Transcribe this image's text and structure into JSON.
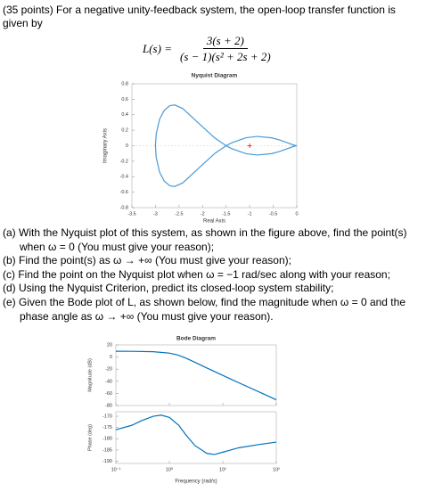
{
  "intro": "(35 points) For a negative unity-feedback system, the open-loop transfer function is given by",
  "formula": {
    "lhs": "L(s) =",
    "numerator": "3(s + 2)",
    "denominator": "(s − 1)(s² + 2s + 2)"
  },
  "nyquist": {
    "type": "line",
    "title": "Nyquist Diagram",
    "xlabel": "Real Axis",
    "ylabel": "Imaginary Axis",
    "xlim": [
      -3.5,
      0
    ],
    "xticks": [
      -3.5,
      -3,
      -2.5,
      -2,
      -1.5,
      -1,
      -0.5,
      0
    ],
    "ylim": [
      -0.8,
      0.8
    ],
    "yticks": [
      -0.8,
      -0.6,
      -0.4,
      -0.2,
      0,
      0.2,
      0.4,
      0.6,
      0.8
    ],
    "series": [
      {
        "color": "#4a9ad6",
        "x": [
          -3,
          -2.985,
          -2.912,
          -2.814,
          -2.695,
          -2.59,
          -2.42,
          -2.1,
          -1.739,
          -1.5,
          -1.381,
          -1.076,
          -0.84,
          -0.534,
          -0.364,
          -0.198,
          -0.086,
          -0.03,
          0
        ],
        "y": [
          0,
          -0.148,
          -0.342,
          -0.456,
          -0.517,
          -0.526,
          -0.48,
          -0.3,
          -0.099,
          0,
          0.038,
          0.103,
          0.12,
          0.102,
          0.074,
          0.038,
          0.013,
          0.003,
          0
        ]
      },
      {
        "color": "#4a9ad6",
        "x": [
          -3,
          -2.985,
          -2.912,
          -2.814,
          -2.695,
          -2.59,
          -2.42,
          -2.1,
          -1.739,
          -1.5,
          -1.381,
          -1.076,
          -0.84,
          -0.534,
          -0.364,
          -0.198,
          -0.086,
          -0.03,
          0
        ],
        "y": [
          0,
          0.148,
          0.342,
          0.456,
          0.517,
          0.526,
          0.48,
          0.3,
          0.099,
          0,
          -0.038,
          -0.103,
          -0.12,
          -0.102,
          -0.074,
          -0.038,
          -0.013,
          -0.003,
          0
        ]
      }
    ],
    "markers": [
      {
        "x": -1,
        "y": 0,
        "color": "#ff0000"
      }
    ]
  },
  "parts": [
    "(a) With the Nyquist plot of this system, as shown in the figure above, find the point(s) when ω = 0 (You must give your reason);",
    "(b) Find the point(s) as ω → +∞ (You must give your reason);",
    "(c) Find the point on the Nyquist plot when ω = −1 rad/sec along with your reason;",
    "(d) Using the Nyquist Criterion, predict its closed-loop system stability;",
    "(e) Given the Bode plot of L, as shown below, find the magnitude when ω = 0 and the phase angle as ω → +∞ (You must give your reason)."
  ],
  "bode": {
    "title": "Bode Diagram",
    "xlabel": "Frequency (rad/s)",
    "xscale": "log",
    "xlim": [
      0.1,
      100
    ],
    "xticks": [
      {
        "value": 0.1,
        "label": "10⁻¹"
      },
      {
        "value": 1,
        "label": "10⁰"
      },
      {
        "value": 10,
        "label": "10¹"
      },
      {
        "value": 100,
        "label": "10²"
      }
    ],
    "magnitude": {
      "type": "line",
      "ylabel": "Magnitude (dB)",
      "ylim": [
        -80,
        20
      ],
      "yticks": [
        -80,
        -60,
        -40,
        -20,
        0,
        20
      ],
      "series": [
        {
          "color": "#0072bd",
          "x": [
            0.1,
            0.2,
            0.5,
            1,
            1.414,
            2,
            3,
            5,
            10,
            20,
            50,
            100
          ],
          "y": [
            9.53,
            9.41,
            8.77,
            6.53,
            3.52,
            -1.42,
            -8.61,
            -17.97,
            -30.34,
            -42.5,
            -58.4,
            -70.5
          ]
        }
      ]
    },
    "phase": {
      "type": "line",
      "ylabel": "Phase (deg)",
      "ylim": [
        -191,
        -168
      ],
      "yticks": [
        -190,
        -185,
        -180,
        -175,
        -170
      ],
      "series": [
        {
          "color": "#0072bd",
          "x": [
            0.1,
            0.2,
            0.3,
            0.5,
            0.7,
            1,
            1.5,
            2,
            3,
            5,
            7,
            10,
            20,
            50,
            100
          ],
          "y": [
            -176,
            -174,
            -172,
            -170,
            -169.5,
            -170.5,
            -174,
            -178,
            -183,
            -186.5,
            -187,
            -186,
            -184,
            -182.5,
            -181.5
          ]
        }
      ]
    }
  }
}
